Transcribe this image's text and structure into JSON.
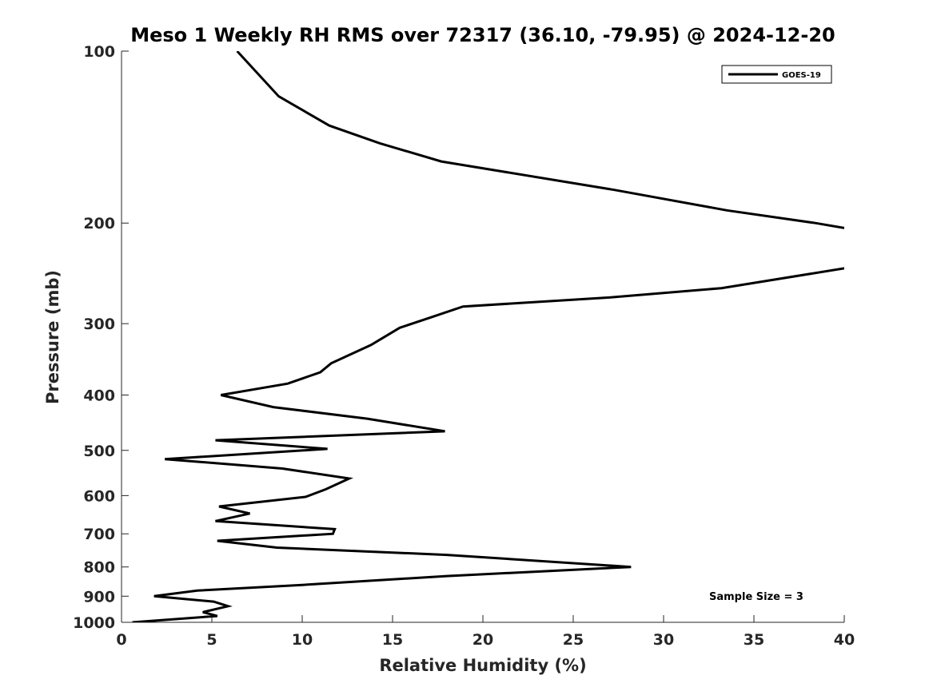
{
  "chart_data": {
    "type": "line",
    "title": "Meso 1 Weekly RH RMS over 72317 (36.10, -79.95) @ 2024-12-20",
    "xlabel": "Relative Humidity (%)",
    "ylabel": "Pressure (mb)",
    "xlim": [
      0,
      40
    ],
    "ylim": [
      1000,
      100
    ],
    "yscale": "log",
    "yreversed": true,
    "xticks": [
      0,
      5,
      10,
      15,
      20,
      25,
      30,
      35,
      40
    ],
    "xtick_labels": [
      "0",
      "5",
      "10",
      "15",
      "20",
      "25",
      "30",
      "35",
      "40"
    ],
    "yticks": [
      100,
      200,
      300,
      400,
      500,
      600,
      700,
      800,
      900,
      1000
    ],
    "ytick_labels": [
      "100",
      "200",
      "300",
      "400",
      "500",
      "600",
      "700",
      "800",
      "900",
      "1000"
    ],
    "grid": false,
    "legend_position": "top-right",
    "annotation": "Sample Size = 3",
    "series": [
      {
        "name": "GOES-19",
        "color": "#000000",
        "points": [
          [
            0.6,
            1000
          ],
          [
            5.3,
            975
          ],
          [
            4.5,
            960
          ],
          [
            5.9,
            937
          ],
          [
            5.1,
            920
          ],
          [
            1.8,
            900
          ],
          [
            4.2,
            880
          ],
          [
            10.0,
            860
          ],
          [
            18.0,
            830
          ],
          [
            28.2,
            800
          ],
          [
            18.0,
            762
          ],
          [
            8.6,
            740
          ],
          [
            5.3,
            720
          ],
          [
            11.7,
            700
          ],
          [
            11.8,
            687
          ],
          [
            5.2,
            665
          ],
          [
            7.1,
            645
          ],
          [
            5.4,
            627
          ],
          [
            10.2,
            603
          ],
          [
            11.3,
            585
          ],
          [
            12.6,
            560
          ],
          [
            8.9,
            538
          ],
          [
            2.4,
            518
          ],
          [
            11.4,
            497
          ],
          [
            5.2,
            480
          ],
          [
            17.9,
            463
          ],
          [
            13.6,
            440
          ],
          [
            8.4,
            420
          ],
          [
            5.5,
            400
          ],
          [
            9.2,
            382
          ],
          [
            11.0,
            365
          ],
          [
            11.6,
            352
          ],
          [
            13.8,
            327
          ],
          [
            15.4,
            305
          ],
          [
            17.2,
            292
          ],
          [
            18.9,
            280
          ],
          [
            27.0,
            270
          ],
          [
            33.2,
            260
          ],
          [
            40.0,
            240
          ]
        ]
      },
      {
        "name": "GOES-19",
        "color": "#000000",
        "points": [
          [
            40.0,
            204
          ],
          [
            38.4,
            200
          ],
          [
            33.5,
            190
          ],
          [
            27.3,
            175
          ],
          [
            17.7,
            156
          ],
          [
            14.3,
            145
          ],
          [
            11.5,
            135
          ],
          [
            8.7,
            120
          ],
          [
            6.4,
            100
          ]
        ]
      }
    ]
  },
  "legend": {
    "label": "GOES-19"
  },
  "annotation": "Sample Size = 3"
}
